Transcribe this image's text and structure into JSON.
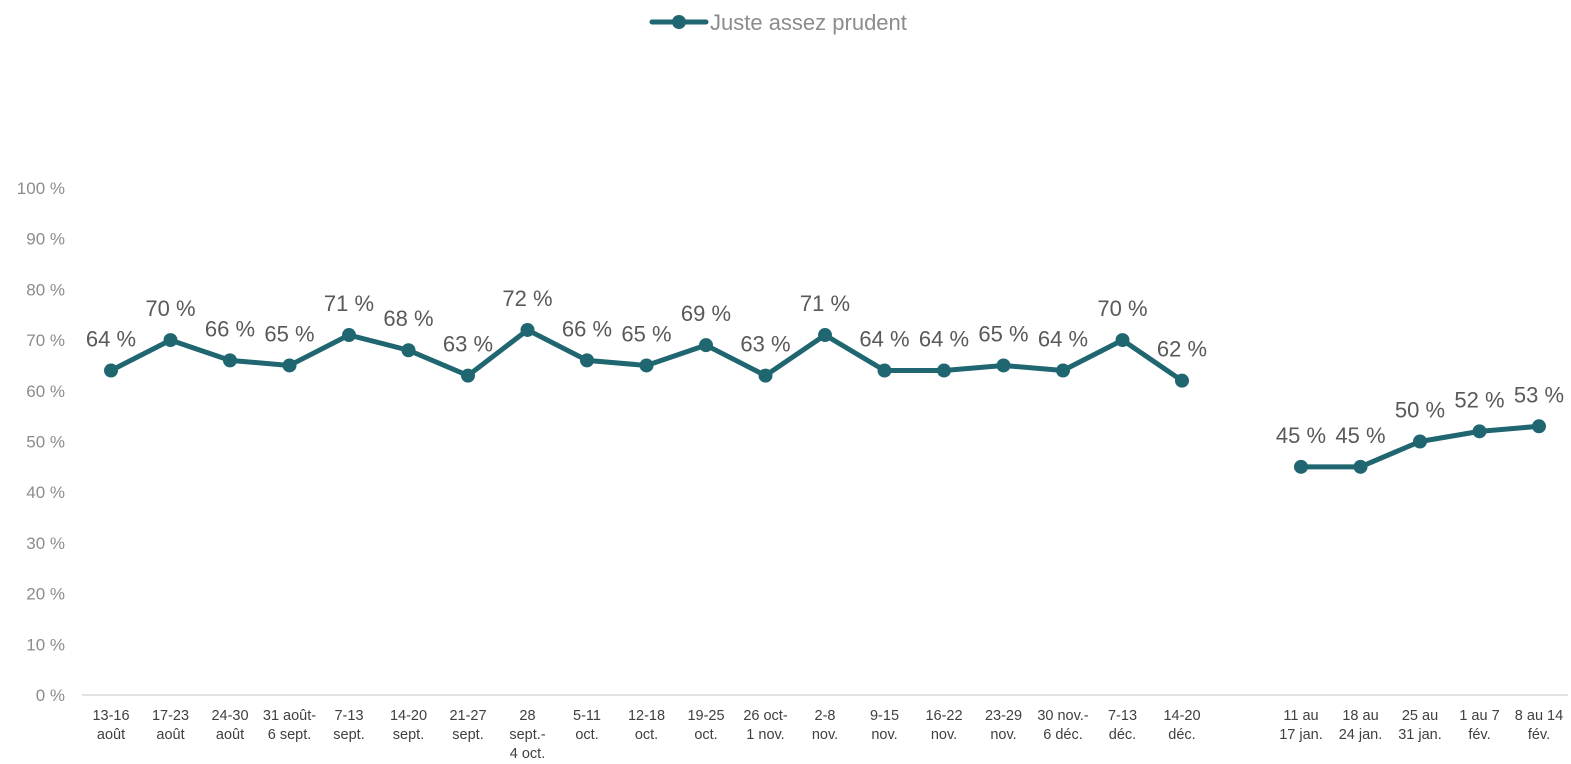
{
  "chart_data": {
    "type": "line",
    "title": "",
    "xlabel": "",
    "ylabel": "",
    "legend_position": "top-center",
    "grid": false,
    "ylim": [
      0,
      100
    ],
    "yticks": [
      "0 %",
      "10 %",
      "20 %",
      "30 %",
      "40 %",
      "50 %",
      "60 %",
      "70 %",
      "80 %",
      "90 %",
      "100 %"
    ],
    "categories": [
      [
        "13-16",
        "août"
      ],
      [
        "17-23",
        "août"
      ],
      [
        "24-30",
        "août"
      ],
      [
        "31 août-",
        "6 sept."
      ],
      [
        "7-13",
        "sept."
      ],
      [
        "14-20",
        "sept."
      ],
      [
        "21-27",
        "sept."
      ],
      [
        "28",
        "sept.-",
        "4 oct."
      ],
      [
        "5-11",
        "oct."
      ],
      [
        "12-18",
        "oct."
      ],
      [
        "19-25",
        "oct."
      ],
      [
        "26 oct-",
        "1 nov."
      ],
      [
        "2-8",
        "nov."
      ],
      [
        "9-15",
        "nov."
      ],
      [
        "16-22",
        "nov."
      ],
      [
        "23-29",
        "nov."
      ],
      [
        "30 nov.-",
        "6 déc."
      ],
      [
        "7-13",
        "déc."
      ],
      [
        "14-20",
        "déc."
      ],
      [
        "",
        ""
      ],
      [
        "11 au",
        "17 jan."
      ],
      [
        "18 au",
        "24 jan."
      ],
      [
        "25 au",
        "31 jan."
      ],
      [
        "1 au 7",
        "fév."
      ],
      [
        "8 au 14",
        "fév."
      ]
    ],
    "series": [
      {
        "name": "Juste assez prudent",
        "color": "#1f6670",
        "values": [
          64,
          70,
          66,
          65,
          71,
          68,
          63,
          72,
          66,
          65,
          69,
          63,
          71,
          64,
          64,
          65,
          64,
          70,
          62,
          null,
          45,
          45,
          50,
          52,
          53
        ],
        "labels": [
          "64 %",
          "70 %",
          "66 %",
          "65 %",
          "71 %",
          "68 %",
          "63 %",
          "72 %",
          "66 %",
          "65 %",
          "69 %",
          "63 %",
          "71 %",
          "64 %",
          "64 %",
          "65 %",
          "64 %",
          "70 %",
          "62 %",
          "",
          "45 %",
          "45 %",
          "50 %",
          "52 %",
          "53 %"
        ]
      }
    ]
  }
}
